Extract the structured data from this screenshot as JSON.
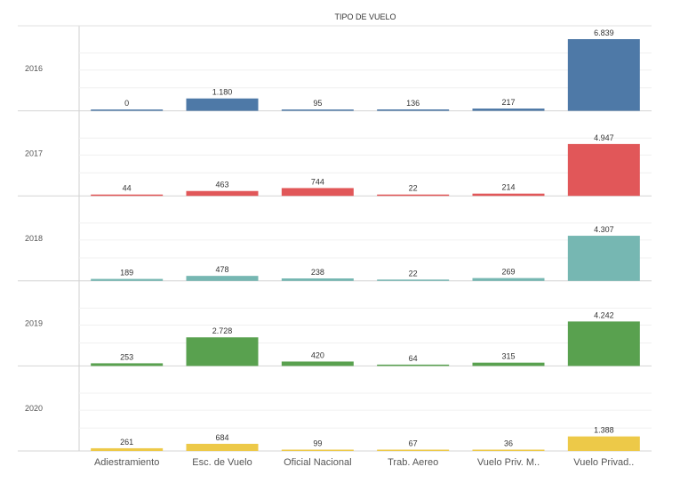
{
  "chart_data": {
    "type": "bar",
    "title": "TIPO DE VUELO",
    "categories": [
      "Adiestramiento",
      "Esc. de Vuelo",
      "Oficial Nacional",
      "Trab. Aereo",
      "Vuelo Priv. M..",
      "Vuelo Privad.."
    ],
    "series": [
      {
        "name": "2016",
        "color": "#4e79a7",
        "values": [
          0,
          1180,
          95,
          136,
          217,
          6839
        ],
        "labels": [
          "0",
          "1.180",
          "95",
          "136",
          "217",
          "6.839"
        ]
      },
      {
        "name": "2017",
        "color": "#e15759",
        "values": [
          44,
          463,
          744,
          22,
          214,
          4947
        ],
        "labels": [
          "44",
          "463",
          "744",
          "22",
          "214",
          "4.947"
        ]
      },
      {
        "name": "2018",
        "color": "#76b7b2",
        "values": [
          189,
          478,
          238,
          22,
          269,
          4307
        ],
        "labels": [
          "189",
          "478",
          "238",
          "22",
          "269",
          "4.307"
        ]
      },
      {
        "name": "2019",
        "color": "#59a14f",
        "values": [
          253,
          2728,
          420,
          64,
          315,
          4242
        ],
        "labels": [
          "253",
          "2.728",
          "420",
          "64",
          "315",
          "4.242"
        ]
      },
      {
        "name": "2020",
        "color": "#edc948",
        "values": [
          261,
          684,
          99,
          67,
          36,
          1388
        ],
        "labels": [
          "261",
          "684",
          "99",
          "67",
          "36",
          "1.388"
        ]
      }
    ],
    "layout": "small-multiples rows by year, shared y scale per row",
    "ylim": [
      0,
      6839
    ],
    "grid": true,
    "legend": "none"
  }
}
